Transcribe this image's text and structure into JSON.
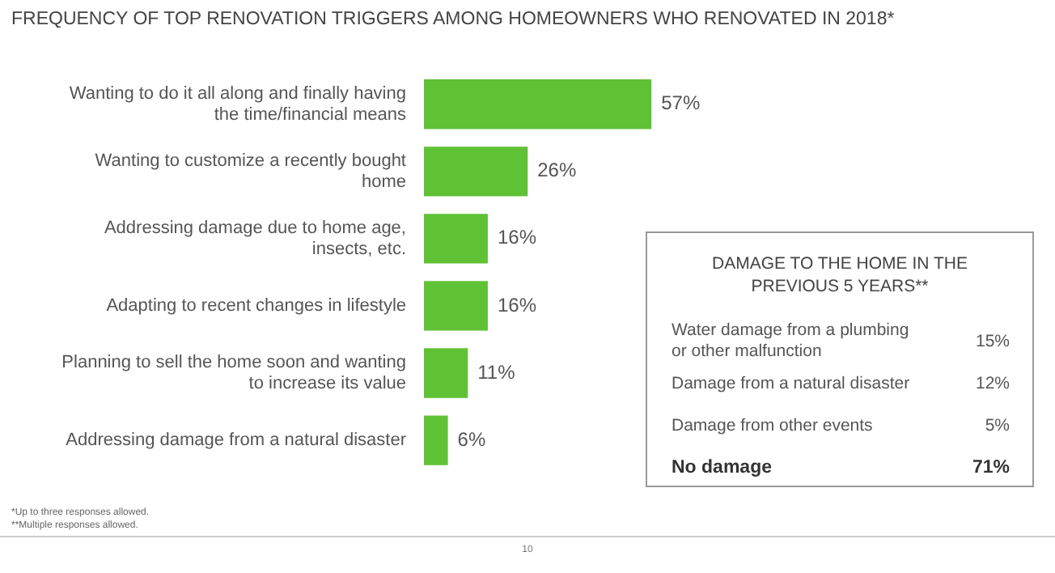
{
  "chart_data": [
    {
      "type": "bar",
      "orientation": "horizontal",
      "title": "FREQUENCY OF TOP RENOVATION TRIGGERS AMONG HOMEOWNERS WHO RENOVATED IN 2018*",
      "categories": [
        "Wanting to do it all along and finally having the time/financial means",
        "Wanting to customize a recently bought home",
        "Addressing damage due to home age, insects, etc.",
        "Adapting to recent changes in lifestyle",
        "Planning to sell the home soon and wanting to increase its value",
        "Addressing damage from a natural disaster"
      ],
      "values": [
        57,
        26,
        16,
        16,
        11,
        6
      ],
      "color": "#5fc235",
      "value_labels": [
        "57%",
        "26%",
        "16%",
        "16%",
        "11%",
        "6%"
      ],
      "annotations": [
        "*Up to three responses allowed.",
        "**Multiple responses allowed.",
        "10"
      ]
    },
    {
      "type": "other",
      "title": "DAMAGE TO THE HOME IN THE PREVIOUS 5 YEARS**",
      "categories": [
        "Water damage from a plumbing or other malfunction",
        "Damage from a natural disaster",
        "Damage from other events",
        "No damage"
      ],
      "value_labels": [
        "15%",
        "12%",
        "5%",
        "71%"
      ]
    }
  ]
}
